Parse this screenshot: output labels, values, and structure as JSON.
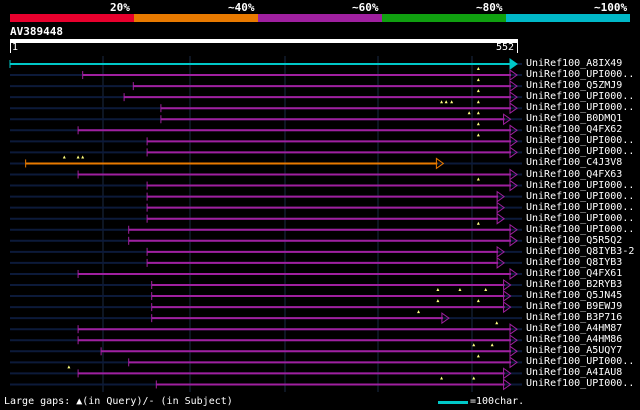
{
  "ruler": {
    "labels": [
      "20%",
      "~40%",
      "~60%",
      "~80%",
      "~100%"
    ],
    "colors": [
      "#e8002d",
      "#e87a00",
      "#a020a0",
      "#10a010",
      "#00b8c8"
    ]
  },
  "query": {
    "id": "AV389448",
    "start": "1",
    "end": "552"
  },
  "hits": [
    {
      "label": "UniRef100_A8IX49",
      "color": "#00c8c8",
      "start": 1,
      "end": 552,
      "gaps": []
    },
    {
      "label": "UniRef100_UPI000..",
      "color": "#a020a0",
      "start": 80,
      "end": 552,
      "gaps": [
        510
      ]
    },
    {
      "label": "UniRef100_Q5ZMJ9",
      "color": "#a020a0",
      "start": 135,
      "end": 552,
      "gaps": [
        510
      ]
    },
    {
      "label": "UniRef100_UPI000..",
      "color": "#a020a0",
      "start": 125,
      "end": 552,
      "gaps": [
        510
      ]
    },
    {
      "label": "UniRef100_UPI000..",
      "color": "#a020a0",
      "start": 165,
      "end": 552,
      "gaps": [
        470,
        475,
        481,
        510
      ]
    },
    {
      "label": "UniRef100_B0DMQ1",
      "color": "#a020a0",
      "start": 165,
      "end": 545,
      "gaps": [
        500,
        510
      ]
    },
    {
      "label": "UniRef100_Q4FX62",
      "color": "#a020a0",
      "start": 75,
      "end": 552,
      "gaps": [
        510
      ]
    },
    {
      "label": "UniRef100_UPI000..",
      "color": "#a020a0",
      "start": 150,
      "end": 552,
      "gaps": [
        510
      ]
    },
    {
      "label": "UniRef100_UPI000..",
      "color": "#a020a0",
      "start": 150,
      "end": 552,
      "gaps": []
    },
    {
      "label": "UniRef100_C4J3V8",
      "color": "#e87a00",
      "start": 18,
      "end": 472,
      "gaps": [
        60,
        75,
        80
      ]
    },
    {
      "label": "UniRef100_Q4FX63",
      "color": "#a020a0",
      "start": 75,
      "end": 552,
      "gaps": []
    },
    {
      "label": "UniRef100_UPI000..",
      "color": "#a020a0",
      "start": 150,
      "end": 552,
      "gaps": [
        510
      ]
    },
    {
      "label": "UniRef100_UPI000..",
      "color": "#a020a0",
      "start": 150,
      "end": 538,
      "gaps": []
    },
    {
      "label": "UniRef100_UPI000..",
      "color": "#a020a0",
      "start": 150,
      "end": 538,
      "gaps": []
    },
    {
      "label": "UniRef100_UPI000..",
      "color": "#a020a0",
      "start": 150,
      "end": 538,
      "gaps": []
    },
    {
      "label": "UniRef100_UPI000..",
      "color": "#a020a0",
      "start": 130,
      "end": 552,
      "gaps": [
        510
      ]
    },
    {
      "label": "UniRef100_Q5R5Q2",
      "color": "#a020a0",
      "start": 130,
      "end": 552,
      "gaps": []
    },
    {
      "label": "UniRef100_Q8IYB3-2",
      "color": "#a020a0",
      "start": 150,
      "end": 538,
      "gaps": []
    },
    {
      "label": "UniRef100_Q8IYB3",
      "color": "#a020a0",
      "start": 150,
      "end": 538,
      "gaps": []
    },
    {
      "label": "UniRef100_Q4FX61",
      "color": "#a020a0",
      "start": 75,
      "end": 552,
      "gaps": []
    },
    {
      "label": "UniRef100_B2RYB3",
      "color": "#a020a0",
      "start": 155,
      "end": 545,
      "gaps": []
    },
    {
      "label": "UniRef100_Q5JN45",
      "color": "#a020a0",
      "start": 155,
      "end": 545,
      "gaps": [
        466,
        490,
        518
      ]
    },
    {
      "label": "UniRef100_B9EWJ9",
      "color": "#a020a0",
      "start": 155,
      "end": 545,
      "gaps": [
        466,
        510
      ]
    },
    {
      "label": "UniRef100_B3P716",
      "color": "#a020a0",
      "start": 155,
      "end": 478,
      "gaps": [
        445
      ]
    },
    {
      "label": "UniRef100_A4HM87",
      "color": "#a020a0",
      "start": 75,
      "end": 552,
      "gaps": [
        530
      ]
    },
    {
      "label": "UniRef100_A4HM86",
      "color": "#a020a0",
      "start": 75,
      "end": 552,
      "gaps": []
    },
    {
      "label": "UniRef100_A5UQY7",
      "color": "#a020a0",
      "start": 100,
      "end": 552,
      "gaps": [
        505,
        525
      ]
    },
    {
      "label": "UniRef100_UPI000..",
      "color": "#a020a0",
      "start": 130,
      "end": 552,
      "gaps": [
        510
      ]
    },
    {
      "label": "UniRef100_A4IAU8",
      "color": "#a020a0",
      "start": 75,
      "end": 545,
      "gaps": [
        65
      ]
    },
    {
      "label": "UniRef100_UPI000..",
      "color": "#a020a0",
      "start": 160,
      "end": 545,
      "gaps": [
        470,
        505
      ]
    }
  ],
  "legend": {
    "gaps_text": "Large gaps: ▲(in Query)/- (in Subject)",
    "scale_text": "=100char."
  }
}
